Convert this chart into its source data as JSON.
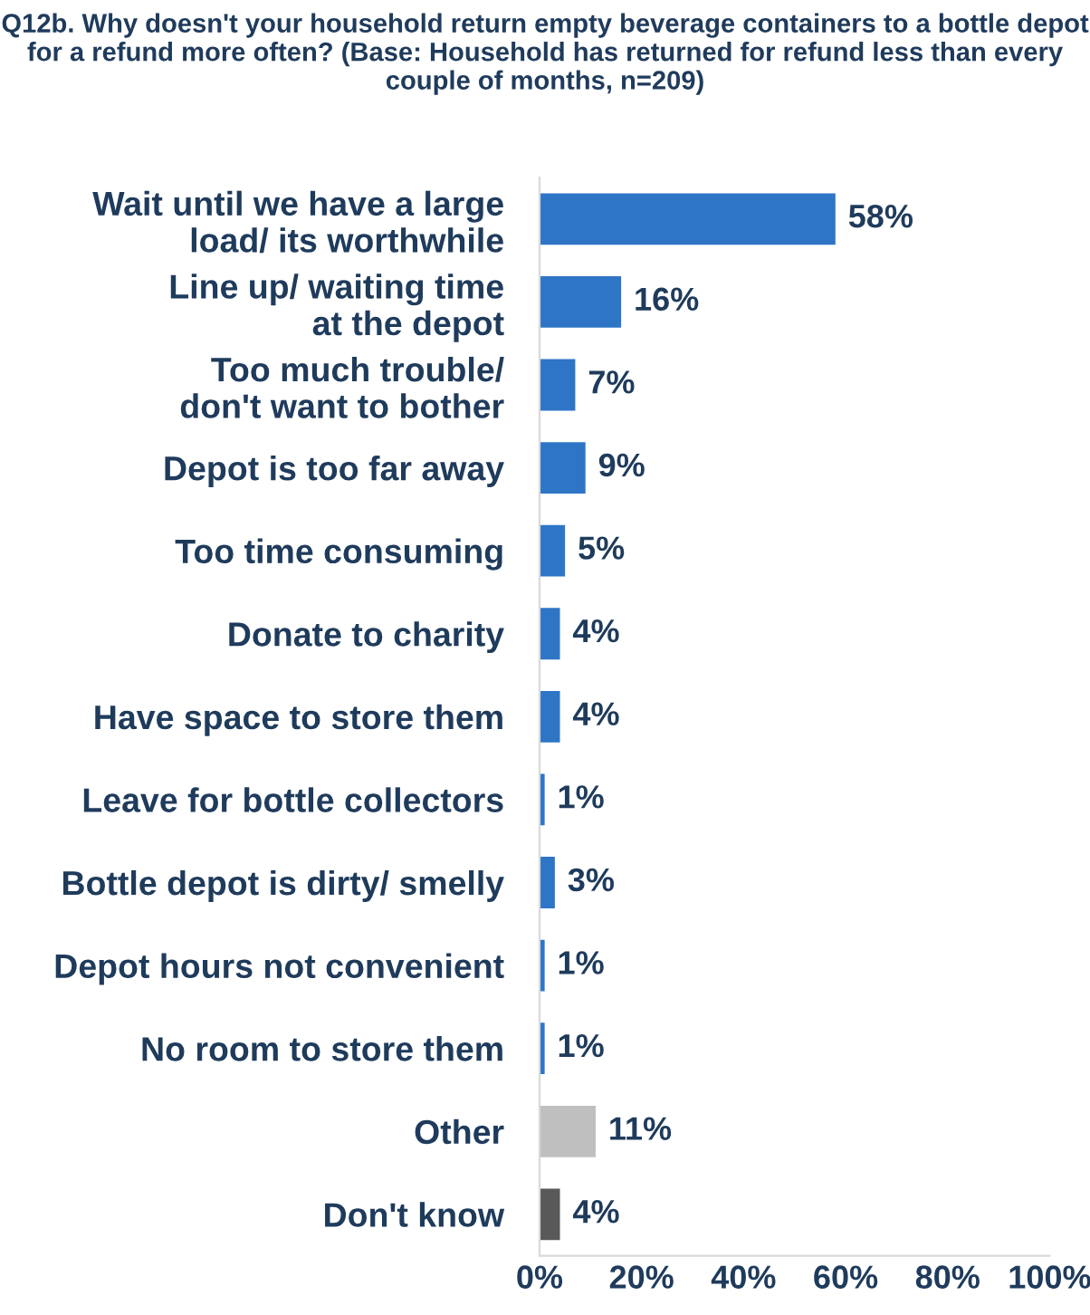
{
  "chart_data": {
    "type": "bar",
    "orientation": "horizontal",
    "title": "Q12b. Why doesn't your household return empty beverage containers to a bottle depot for a refund more often? (Base: Household has returned for refund less than every couple of months, n=209)",
    "categories": [
      "Wait until we have a large\nload/ its worthwhile",
      "Line up/ waiting time\nat the depot",
      "Too much trouble/\ndon't want to bother",
      "Depot is too far away",
      "Too time consuming",
      "Donate to charity",
      "Have space to store them",
      "Leave for bottle collectors",
      "Bottle depot is dirty/ smelly",
      "Depot hours not convenient",
      "No room to store them",
      "Other",
      "Don't know"
    ],
    "values": [
      58,
      16,
      7,
      9,
      5,
      4,
      4,
      1,
      3,
      1,
      1,
      11,
      4
    ],
    "colors": [
      "#2e75c6",
      "#2e75c6",
      "#2e75c6",
      "#2e75c6",
      "#2e75c6",
      "#2e75c6",
      "#2e75c6",
      "#2e75c6",
      "#2e75c6",
      "#2e75c6",
      "#2e75c6",
      "#bfbfbf",
      "#595959"
    ],
    "value_labels": [
      "58%",
      "16%",
      "7%",
      "9%",
      "5%",
      "4%",
      "4%",
      "1%",
      "3%",
      "1%",
      "1%",
      "11%",
      "4%"
    ],
    "xlim": [
      0,
      100
    ],
    "xticks": [
      {
        "value": 0,
        "label": "0%"
      },
      {
        "value": 20,
        "label": "20%"
      },
      {
        "value": 40,
        "label": "40%"
      },
      {
        "value": 60,
        "label": "60%"
      },
      {
        "value": 80,
        "label": "80%"
      },
      {
        "value": 100,
        "label": "100%"
      }
    ],
    "grid": false,
    "legend": false
  }
}
